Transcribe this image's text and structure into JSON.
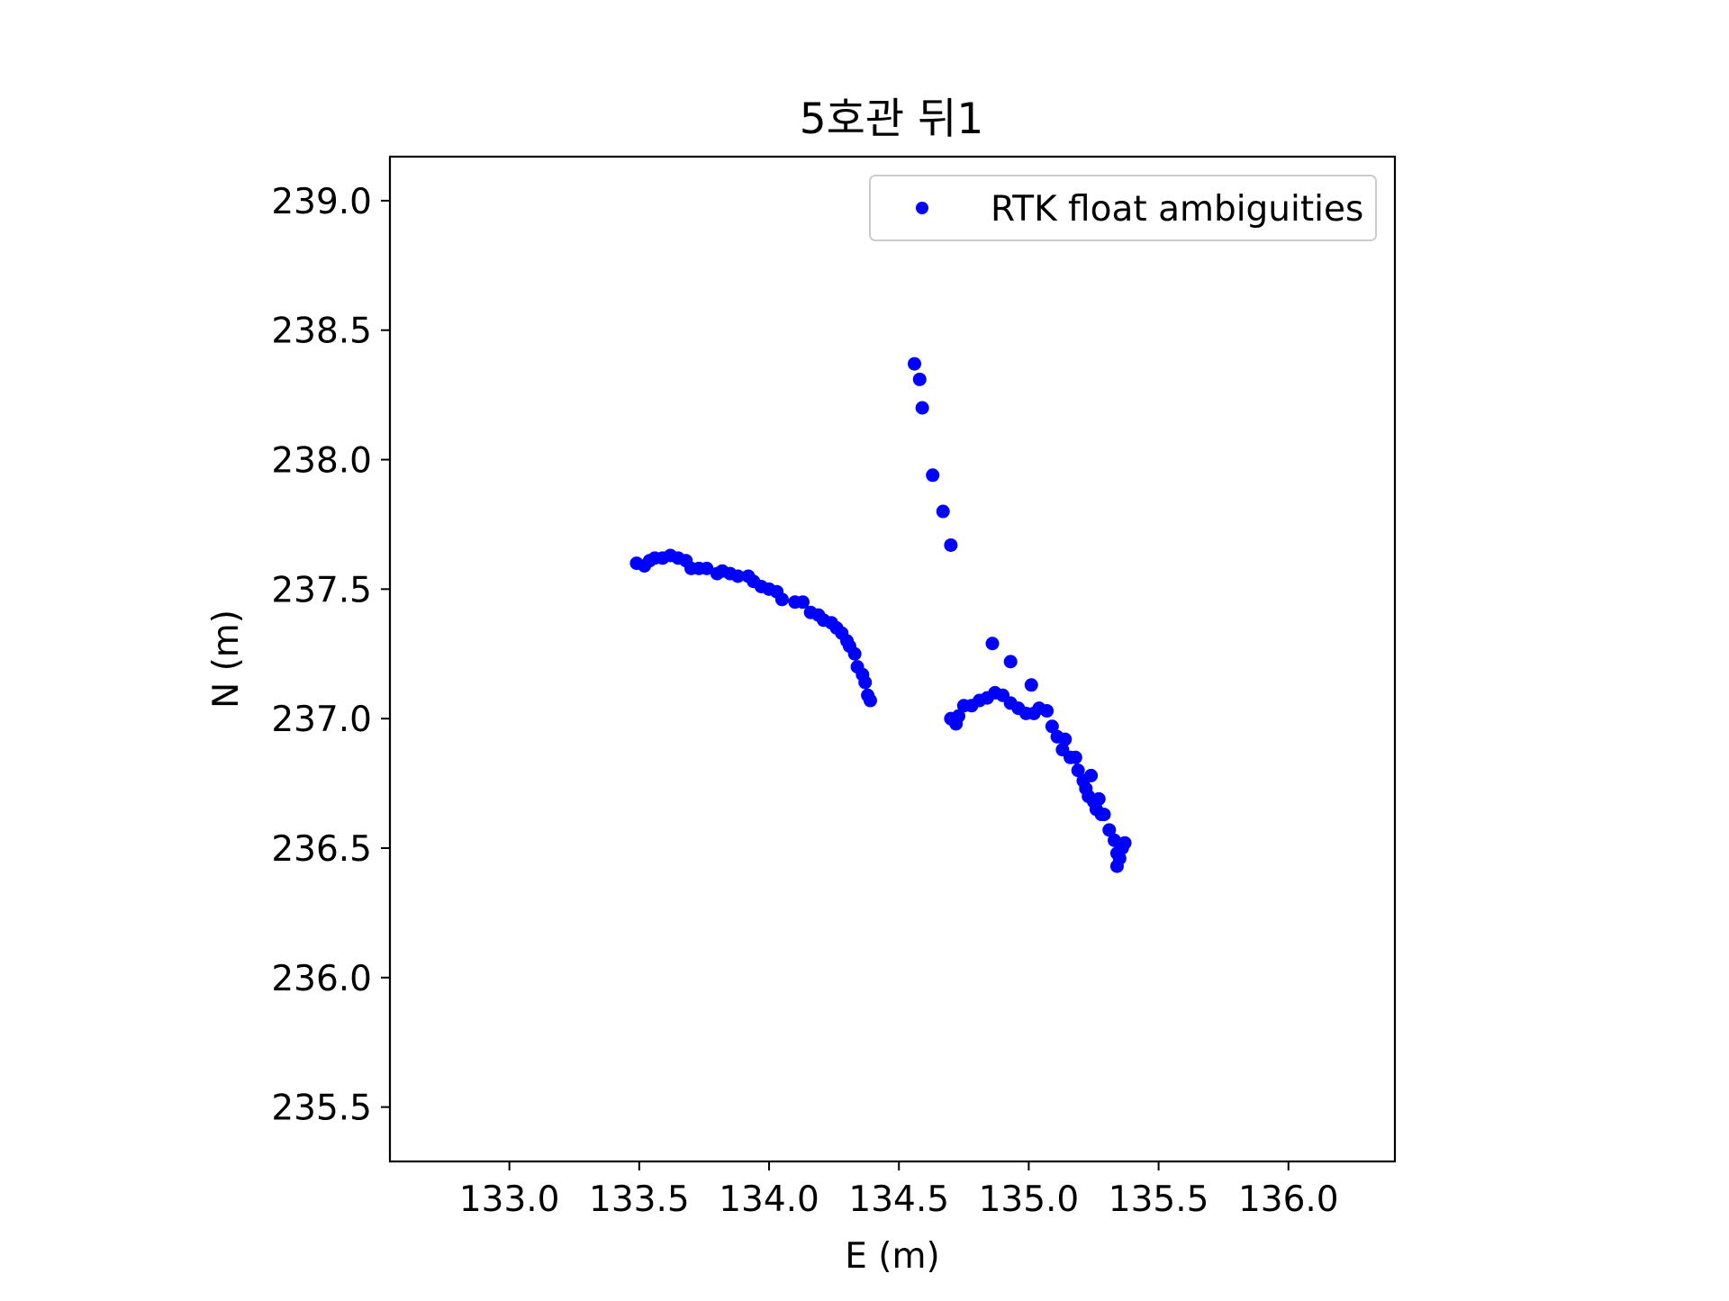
{
  "chart_data": {
    "type": "scatter",
    "title": "5호관 뒤1",
    "xlabel": "E (m)",
    "ylabel": "N (m)",
    "xlim": [
      132.54,
      136.41
    ],
    "ylim": [
      235.29,
      239.17
    ],
    "xticks": [
      "133.0",
      "133.5",
      "134.0",
      "134.5",
      "135.0",
      "135.5",
      "136.0"
    ],
    "yticks": [
      "235.5",
      "236.0",
      "236.5",
      "237.0",
      "237.5",
      "238.0",
      "238.5",
      "239.0"
    ],
    "grid": false,
    "legend_position": "top-right",
    "series": [
      {
        "name": "RTK float ambiguities",
        "color": "#0000ff",
        "marker": "circle",
        "points": [
          [
            133.49,
            237.6
          ],
          [
            133.52,
            237.59
          ],
          [
            133.54,
            237.61
          ],
          [
            133.56,
            237.62
          ],
          [
            133.59,
            237.62
          ],
          [
            133.62,
            237.63
          ],
          [
            133.65,
            237.62
          ],
          [
            133.68,
            237.61
          ],
          [
            133.7,
            237.58
          ],
          [
            133.73,
            237.58
          ],
          [
            133.76,
            237.58
          ],
          [
            133.8,
            237.56
          ],
          [
            133.82,
            237.57
          ],
          [
            133.85,
            237.56
          ],
          [
            133.88,
            237.55
          ],
          [
            133.92,
            237.55
          ],
          [
            133.94,
            237.53
          ],
          [
            133.97,
            237.51
          ],
          [
            134.0,
            237.5
          ],
          [
            134.03,
            237.49
          ],
          [
            134.05,
            237.46
          ],
          [
            134.1,
            237.45
          ],
          [
            134.13,
            237.45
          ],
          [
            134.16,
            237.41
          ],
          [
            134.19,
            237.4
          ],
          [
            134.21,
            237.38
          ],
          [
            134.24,
            237.37
          ],
          [
            134.26,
            237.35
          ],
          [
            134.28,
            237.33
          ],
          [
            134.3,
            237.3
          ],
          [
            134.31,
            237.28
          ],
          [
            134.33,
            237.25
          ],
          [
            134.34,
            237.2
          ],
          [
            134.36,
            237.17
          ],
          [
            134.37,
            237.14
          ],
          [
            134.38,
            237.09
          ],
          [
            134.39,
            237.07
          ],
          [
            134.56,
            238.37
          ],
          [
            134.58,
            238.31
          ],
          [
            134.59,
            238.2
          ],
          [
            134.63,
            237.94
          ],
          [
            134.67,
            237.8
          ],
          [
            134.7,
            237.67
          ],
          [
            134.7,
            237.0
          ],
          [
            134.72,
            236.98
          ],
          [
            134.73,
            237.01
          ],
          [
            134.75,
            237.05
          ],
          [
            134.78,
            237.05
          ],
          [
            134.81,
            237.07
          ],
          [
            134.84,
            237.08
          ],
          [
            134.87,
            237.1
          ],
          [
            134.9,
            237.09
          ],
          [
            134.93,
            237.06
          ],
          [
            134.96,
            237.04
          ],
          [
            134.99,
            237.02
          ],
          [
            135.02,
            237.02
          ],
          [
            135.04,
            237.04
          ],
          [
            135.07,
            237.03
          ],
          [
            135.09,
            236.97
          ],
          [
            135.11,
            236.93
          ],
          [
            135.14,
            236.92
          ],
          [
            135.13,
            236.88
          ],
          [
            135.16,
            236.85
          ],
          [
            135.18,
            236.85
          ],
          [
            135.19,
            236.8
          ],
          [
            135.21,
            236.76
          ],
          [
            135.22,
            236.73
          ],
          [
            135.24,
            236.78
          ],
          [
            135.23,
            236.7
          ],
          [
            135.25,
            236.68
          ],
          [
            135.26,
            236.65
          ],
          [
            135.27,
            236.69
          ],
          [
            135.28,
            236.63
          ],
          [
            135.29,
            236.63
          ],
          [
            135.31,
            236.57
          ],
          [
            135.33,
            236.53
          ],
          [
            135.34,
            236.48
          ],
          [
            135.35,
            236.46
          ],
          [
            135.36,
            236.5
          ],
          [
            135.37,
            236.52
          ],
          [
            135.34,
            236.43
          ],
          [
            134.86,
            237.29
          ],
          [
            134.93,
            237.22
          ],
          [
            135.01,
            237.13
          ]
        ]
      }
    ]
  }
}
